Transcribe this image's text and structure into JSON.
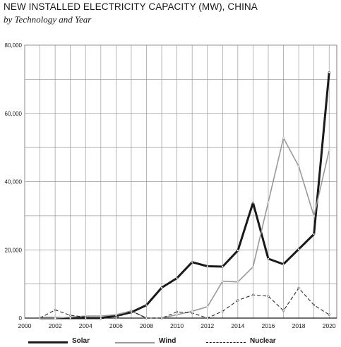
{
  "chart_data": {
    "type": "line",
    "title": "NEW INSTALLED ELECTRICITY CAPACITY (MW), CHINA",
    "subtitle": "by Technology and Year",
    "xlabel": "",
    "ylabel": "",
    "xlim": [
      2000,
      2020.5
    ],
    "ylim": [
      0,
      80000
    ],
    "x_ticks": [
      "2000",
      "2002",
      "2004",
      "2006",
      "2008",
      "2010",
      "2012",
      "2014",
      "2016",
      "2018",
      "2020"
    ],
    "y_ticks": [
      "0",
      "20,000",
      "40,000",
      "60,000",
      "80,000"
    ],
    "grid": true,
    "legend_position": "bottom",
    "x": [
      2001,
      2002,
      2003,
      2004,
      2005,
      2006,
      2007,
      2008,
      2009,
      2010,
      2011,
      2012,
      2013,
      2014,
      2015,
      2016,
      2017,
      2018,
      2019,
      2020
    ],
    "series": [
      {
        "name": "Solar",
        "color": "#1a1a1a",
        "style": "solid-thick",
        "values": [
          0,
          0,
          0,
          0,
          0,
          700,
          1700,
          3800,
          8900,
          11700,
          16400,
          15200,
          15100,
          19800,
          33800,
          17400,
          15800,
          20200,
          24600,
          72000
        ]
      },
      {
        "name": "Wind",
        "color": "#999999",
        "style": "solid",
        "values": [
          0,
          0,
          300,
          600,
          600,
          1000,
          2100,
          0,
          0,
          1000,
          2000,
          3300,
          10800,
          10600,
          15000,
          34000,
          52800,
          44500,
          29900,
          49200
        ]
      },
      {
        "name": "Nuclear",
        "color": "#1a1a1a",
        "style": "dashed",
        "values": [
          0,
          2400,
          800,
          300,
          0,
          0,
          2100,
          0,
          0,
          1800,
          1500,
          0,
          2000,
          5200,
          6800,
          6400,
          2200,
          8800,
          3800,
          1000
        ]
      }
    ]
  }
}
